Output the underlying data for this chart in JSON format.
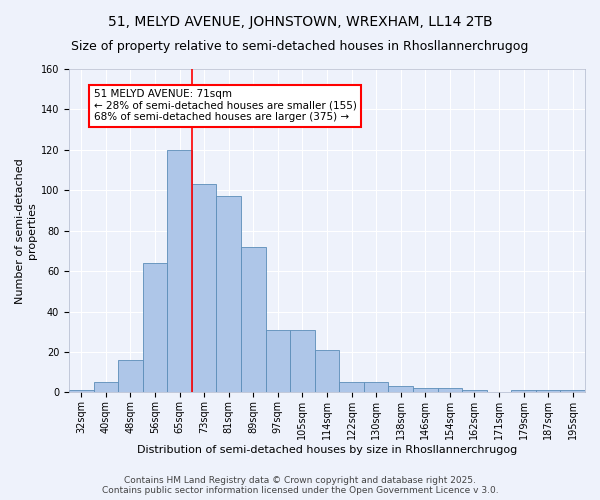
{
  "title": "51, MELYD AVENUE, JOHNSTOWN, WREXHAM, LL14 2TB",
  "subtitle": "Size of property relative to semi-detached houses in Rhosllannerchrugog",
  "xlabel": "Distribution of semi-detached houses by size in Rhosllannerchrugog",
  "ylabel": "Number of semi-detached\nproperties",
  "bin_labels": [
    "32sqm",
    "40sqm",
    "48sqm",
    "56sqm",
    "65sqm",
    "73sqm",
    "81sqm",
    "89sqm",
    "97sqm",
    "105sqm",
    "114sqm",
    "122sqm",
    "130sqm",
    "138sqm",
    "146sqm",
    "154sqm",
    "162sqm",
    "171sqm",
    "179sqm",
    "187sqm",
    "195sqm"
  ],
  "bar_values": [
    1,
    5,
    16,
    64,
    120,
    103,
    97,
    72,
    31,
    31,
    21,
    5,
    5,
    3,
    2,
    2,
    1,
    0,
    1,
    1,
    1
  ],
  "bar_color": "#aec6e8",
  "bar_edge_color": "#5b8db8",
  "vline_x": 4.5,
  "vline_color": "red",
  "annotation_text": "51 MELYD AVENUE: 71sqm\n← 28% of semi-detached houses are smaller (155)\n68% of semi-detached houses are larger (375) →",
  "annotation_box_color": "white",
  "annotation_box_edge": "red",
  "ylim": [
    0,
    160
  ],
  "yticks": [
    0,
    20,
    40,
    60,
    80,
    100,
    120,
    140,
    160
  ],
  "footer": "Contains HM Land Registry data © Crown copyright and database right 2025.\nContains public sector information licensed under the Open Government Licence v 3.0.",
  "bg_color": "#eef2fb",
  "plot_bg_color": "#eef2fb",
  "title_fontsize": 10,
  "subtitle_fontsize": 9,
  "axis_label_fontsize": 8,
  "tick_fontsize": 7,
  "footer_fontsize": 6.5,
  "annotation_fontsize": 7.5
}
